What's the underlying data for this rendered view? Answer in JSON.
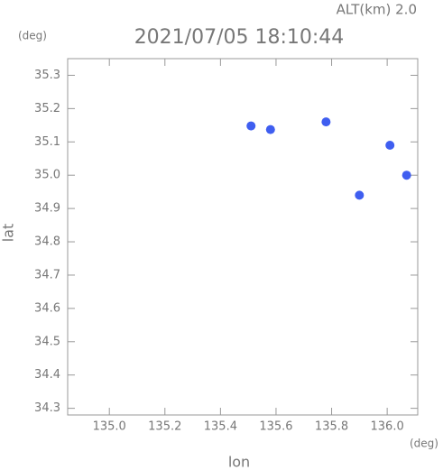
{
  "chart_data": {
    "type": "scatter",
    "title": "2021/07/05 18:10:44",
    "annotation": "ALT(km) 2.0",
    "y_unit": "(deg)",
    "x_unit": "(deg)",
    "x_label": "lon",
    "y_label": "lat",
    "color": "#3f5ef0",
    "x": [
      135.51,
      135.58,
      135.78,
      136.01,
      135.9,
      136.07
    ],
    "values": [
      35.148,
      35.137,
      35.16,
      35.09,
      34.94,
      35.0
    ],
    "xlim": [
      134.85,
      136.11
    ],
    "ylim": [
      34.28,
      35.35
    ],
    "xticks": [
      {
        "value": 135,
        "label": "135.0"
      },
      135.2,
      135.4,
      135.6,
      135.8,
      {
        "value": 136,
        "label": "136.0"
      }
    ],
    "yticks": [
      34.3,
      34.4,
      34.5,
      34.6,
      34.7,
      34.8,
      34.9,
      {
        "value": 35,
        "label": "35.0"
      },
      35.1,
      35.2,
      35.3
    ],
    "grid": false
  }
}
